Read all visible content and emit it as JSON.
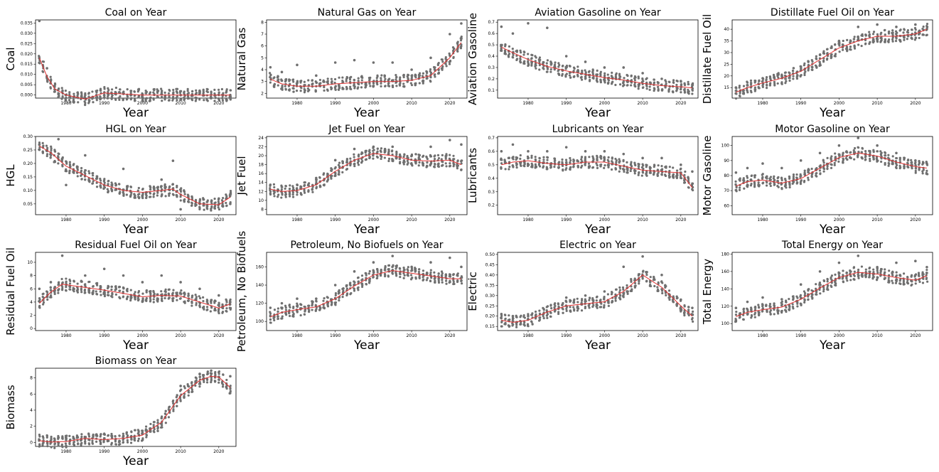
{
  "x_ticks": [
    1980,
    1990,
    2000,
    2010,
    2020
  ],
  "x_range": [
    1972,
    2024.5
  ],
  "chart_data": [
    {
      "type": "scatter",
      "title": "Coal on Year",
      "xlabel": "Year",
      "ylabel": "Coal",
      "ylim": [
        -0.0015,
        0.0365
      ],
      "yticks": [
        "0.000",
        "0.005",
        "0.010",
        "0.015",
        "0.020",
        "0.025",
        "0.030",
        "0.035"
      ],
      "yvals": [
        0,
        0.005,
        0.01,
        0.015,
        0.02,
        0.025,
        0.03,
        0.035
      ],
      "series": [
        {
          "name": "",
          "x": [
            1973,
            1975,
            1977,
            1980,
            1985,
            1990,
            2000,
            2010,
            2020,
            2023
          ],
          "y": [
            0.036,
            0.013,
            0.004,
            0.0,
            0.0,
            0.0,
            0.0,
            0.0,
            0.0,
            0.0
          ],
          "fit": [
            0.018,
            0.009,
            0.003,
            0.0,
            -0.002,
            0.001,
            0.0,
            0.0,
            0.0,
            0.0
          ]
        }
      ]
    },
    {
      "type": "scatter",
      "title": "Natural Gas on Year",
      "xlabel": "Year",
      "ylabel": "Natural Gas",
      "ylim": [
        1.6,
        8.2
      ],
      "yticks": [
        "2",
        "3",
        "4",
        "5",
        "6",
        "7",
        "8"
      ],
      "yvals": [
        2,
        3,
        4,
        5,
        6,
        7,
        8
      ],
      "series": [
        {
          "name": "",
          "x": [
            1973,
            1976,
            1980,
            1985,
            1990,
            1995,
            2000,
            2005,
            2010,
            2015,
            2020,
            2023
          ],
          "y": [
            4.2,
            3.8,
            4.4,
            3.5,
            4.6,
            4.8,
            4.6,
            4.6,
            4.0,
            5.0,
            7.0,
            7.9
          ],
          "fit": [
            3.2,
            2.8,
            2.6,
            2.6,
            2.8,
            2.9,
            3.0,
            3.0,
            3.1,
            3.5,
            5.0,
            6.3
          ]
        }
      ]
    },
    {
      "type": "scatter",
      "title": "Aviation Gasoline on Year",
      "xlabel": "Year",
      "ylabel": "Aviation Gasoline",
      "ylim": [
        0.03,
        0.72
      ],
      "yticks": [
        "0.1",
        "0.2",
        "0.3",
        "0.4",
        "0.5",
        "0.6",
        "0.7"
      ],
      "yvals": [
        0.1,
        0.2,
        0.3,
        0.4,
        0.5,
        0.6,
        0.7
      ],
      "series": [
        {
          "name": "",
          "x": [
            1973,
            1976,
            1980,
            1985,
            1990,
            1995,
            2000,
            2005,
            2010,
            2015,
            2020,
            2023
          ],
          "y": [
            0.66,
            0.6,
            0.69,
            0.65,
            0.4,
            0.35,
            0.3,
            0.3,
            0.25,
            0.2,
            0.18,
            0.15
          ],
          "fit": [
            0.48,
            0.43,
            0.37,
            0.31,
            0.27,
            0.24,
            0.21,
            0.19,
            0.16,
            0.14,
            0.13,
            0.12
          ]
        }
      ]
    },
    {
      "type": "scatter",
      "title": "Distillate Fuel Oil on Year",
      "xlabel": "Year",
      "ylabel": "Distillate Fuel Oil",
      "ylim": [
        10.5,
        44
      ],
      "yticks": [
        "15",
        "20",
        "25",
        "30",
        "35",
        "40"
      ],
      "yvals": [
        15,
        20,
        25,
        30,
        35,
        40
      ],
      "series": [
        {
          "name": "",
          "x": [
            1973,
            1976,
            1980,
            1985,
            1990,
            1995,
            2000,
            2005,
            2010,
            2015,
            2020,
            2023
          ],
          "y": [
            15,
            16,
            19,
            20,
            24,
            29,
            35,
            41,
            42,
            41,
            42,
            40
          ],
          "fit": [
            13,
            15,
            17,
            19,
            22,
            27,
            32,
            35,
            37,
            37,
            38,
            40
          ]
        }
      ]
    },
    {
      "type": "scatter",
      "title": "HGL on Year",
      "xlabel": "Year",
      "ylabel": "HGL",
      "ylim": [
        0.01,
        0.3
      ],
      "yticks": [
        "0.05",
        "0.10",
        "0.15",
        "0.20",
        "0.25",
        "0.30"
      ],
      "yvals": [
        0.05,
        0.1,
        0.15,
        0.2,
        0.25,
        0.3
      ],
      "series": [
        {
          "name": "",
          "x": [
            1973,
            1976,
            1978,
            1980,
            1985,
            1990,
            1995,
            2000,
            2005,
            2008,
            2010,
            2015,
            2020,
            2023
          ],
          "y": [
            0.27,
            0.24,
            0.29,
            0.12,
            0.23,
            0.12,
            0.18,
            0.08,
            0.14,
            0.21,
            0.03,
            0.05,
            0.07,
            0.05
          ],
          "fit": [
            0.265,
            0.24,
            0.215,
            0.19,
            0.155,
            0.12,
            0.1,
            0.093,
            0.1,
            0.105,
            0.085,
            0.05,
            0.047,
            0.075
          ]
        }
      ]
    },
    {
      "type": "scatter",
      "title": "Jet Fuel on Year",
      "xlabel": "Year",
      "ylabel": "Jet Fuel",
      "ylim": [
        6.8,
        24.3
      ],
      "yticks": [
        "8",
        "10",
        "12",
        "14",
        "16",
        "18",
        "20",
        "22",
        "24"
      ],
      "yvals": [
        8,
        10,
        12,
        14,
        16,
        18,
        20,
        22,
        24
      ],
      "series": [
        {
          "name": "",
          "x": [
            1973,
            1976,
            1980,
            1985,
            1990,
            1995,
            2000,
            2005,
            2010,
            2015,
            2020,
            2023
          ],
          "y": [
            13.5,
            13,
            13.5,
            15,
            19,
            21.5,
            22,
            22,
            20,
            22,
            23.5,
            22.5
          ],
          "fit": [
            12.5,
            12,
            12.2,
            13.5,
            16.5,
            19,
            20.5,
            20,
            19,
            18.8,
            19,
            18
          ]
        }
      ]
    },
    {
      "type": "scatter",
      "title": "Lubricants on Year",
      "xlabel": "Year",
      "ylabel": "Lubricants",
      "ylim": [
        0.13,
        0.71
      ],
      "yticks": [
        "0.2",
        "0.3",
        "0.4",
        "0.5",
        "0.6",
        "0.7"
      ],
      "yvals": [
        0.2,
        0.3,
        0.4,
        0.5,
        0.6,
        0.7
      ],
      "series": [
        {
          "name": "",
          "x": [
            1973,
            1976,
            1980,
            1985,
            1990,
            1995,
            2000,
            2005,
            2010,
            2015,
            2020,
            2023
          ],
          "y": [
            0.6,
            0.65,
            0.6,
            0.6,
            0.63,
            0.6,
            0.6,
            0.58,
            0.55,
            0.55,
            0.5,
            0.45
          ],
          "fit": [
            0.5,
            0.52,
            0.53,
            0.51,
            0.5,
            0.52,
            0.52,
            0.49,
            0.46,
            0.45,
            0.44,
            0.33
          ]
        }
      ]
    },
    {
      "type": "scatter",
      "title": "Motor Gasoline on Year",
      "xlabel": "Year",
      "ylabel": "Motor Gasoline",
      "ylim": [
        54,
        106
      ],
      "yticks": [
        "60",
        "70",
        "80",
        "90",
        "100"
      ],
      "yvals": [
        60,
        70,
        80,
        90,
        100
      ],
      "series": [
        {
          "name": "",
          "x": [
            1973,
            1976,
            1980,
            1985,
            1990,
            1995,
            2000,
            2005,
            2010,
            2015,
            2020,
            2023
          ],
          "y": [
            82,
            85,
            88,
            85,
            90,
            95,
            100,
            105,
            100,
            95,
            90,
            88
          ],
          "fit": [
            73,
            76,
            77,
            75,
            78,
            85,
            92,
            95,
            93,
            89,
            86,
            85
          ]
        }
      ]
    },
    {
      "type": "scatter",
      "title": "Residual Fuel Oil on Year",
      "xlabel": "Year",
      "ylabel": "Residual Fuel Oil",
      "ylim": [
        -0.3,
        11.5
      ],
      "yticks": [
        "0",
        "2",
        "4",
        "6",
        "8",
        "10"
      ],
      "yvals": [
        0,
        2,
        4,
        6,
        8,
        10
      ],
      "series": [
        {
          "name": "",
          "x": [
            1973,
            1976,
            1979,
            1985,
            1990,
            1995,
            2000,
            2005,
            2010,
            2015,
            2020,
            2023
          ],
          "y": [
            6,
            7,
            11,
            8,
            9,
            8,
            7,
            8,
            7,
            6,
            5,
            4
          ],
          "fit": [
            3.8,
            5.5,
            6.7,
            6.2,
            5.8,
            5.3,
            4.8,
            5,
            4.9,
            4,
            3.1,
            3.7
          ]
        }
      ]
    },
    {
      "type": "scatter",
      "title": "Petroleum, No Biofuels on Year",
      "xlabel": "Year",
      "ylabel": "Petroleum, No Biofuels",
      "ylim": [
        90,
        176
      ],
      "yticks": [
        "100",
        "120",
        "140",
        "160"
      ],
      "yvals": [
        100,
        120,
        140,
        160
      ],
      "series": [
        {
          "name": "",
          "x": [
            1973,
            1976,
            1980,
            1985,
            1990,
            1995,
            2000,
            2005,
            2010,
            2015,
            2020,
            2023
          ],
          "y": [
            115,
            120,
            125,
            125,
            140,
            155,
            165,
            172,
            160,
            165,
            170,
            160
          ],
          "fit": [
            105,
            110,
            113,
            116,
            125,
            139,
            151,
            156,
            153,
            150,
            147,
            147
          ]
        }
      ]
    },
    {
      "type": "scatter",
      "title": "Electric on Year",
      "xlabel": "Year",
      "ylabel": "Electric",
      "ylim": [
        0.13,
        0.51
      ],
      "yticks": [
        "0.15",
        "0.20",
        "0.25",
        "0.30",
        "0.35",
        "0.40",
        "0.45",
        "0.50"
      ],
      "yvals": [
        0.15,
        0.2,
        0.25,
        0.3,
        0.35,
        0.4,
        0.45,
        0.5
      ],
      "series": [
        {
          "name": "",
          "x": [
            1973,
            1976,
            1980,
            1985,
            1990,
            1995,
            2000,
            2005,
            2010,
            2015,
            2020,
            2023
          ],
          "y": [
            0.21,
            0.2,
            0.2,
            0.22,
            0.29,
            0.3,
            0.32,
            0.44,
            0.49,
            0.4,
            0.28,
            0.24
          ],
          "fit": [
            0.18,
            0.17,
            0.18,
            0.22,
            0.25,
            0.26,
            0.27,
            0.32,
            0.4,
            0.34,
            0.25,
            0.2
          ]
        }
      ]
    },
    {
      "type": "scatter",
      "title": "Total Energy on Year",
      "xlabel": "Year",
      "ylabel": "Total Energy",
      "ylim": [
        92,
        182
      ],
      "yticks": [
        "100",
        "120",
        "140",
        "160",
        "180"
      ],
      "yvals": [
        100,
        120,
        140,
        160,
        180
      ],
      "series": [
        {
          "name": "",
          "x": [
            1973,
            1976,
            1980,
            1985,
            1990,
            1995,
            2000,
            2005,
            2010,
            2015,
            2020,
            2023
          ],
          "y": [
            118,
            125,
            130,
            128,
            145,
            160,
            170,
            178,
            165,
            170,
            172,
            165
          ],
          "fit": [
            108,
            113,
            116,
            119,
            128,
            141,
            153,
            159,
            157,
            153,
            150,
            155
          ]
        }
      ]
    },
    {
      "type": "scatter",
      "title": "Biomass on Year",
      "xlabel": "Year",
      "ylabel": "Biomass",
      "ylim": [
        -0.5,
        9.2
      ],
      "yticks": [
        "0",
        "2",
        "4",
        "6",
        "8"
      ],
      "yvals": [
        0,
        2,
        4,
        6,
        8
      ],
      "series": [
        {
          "name": "",
          "x": [
            1973,
            1976,
            1980,
            1985,
            1990,
            1995,
            2000,
            2005,
            2010,
            2015,
            2018,
            2020,
            2023
          ],
          "y": [
            0.3,
            0.2,
            0.3,
            0.6,
            0.5,
            0.8,
            1.2,
            3,
            7,
            8.5,
            8.9,
            8.7,
            8.2
          ],
          "fit": [
            0.2,
            0.05,
            0.1,
            0.5,
            0.35,
            0.5,
            0.9,
            2.5,
            5.8,
            7.7,
            8.2,
            8.1,
            6.8
          ]
        }
      ]
    }
  ]
}
